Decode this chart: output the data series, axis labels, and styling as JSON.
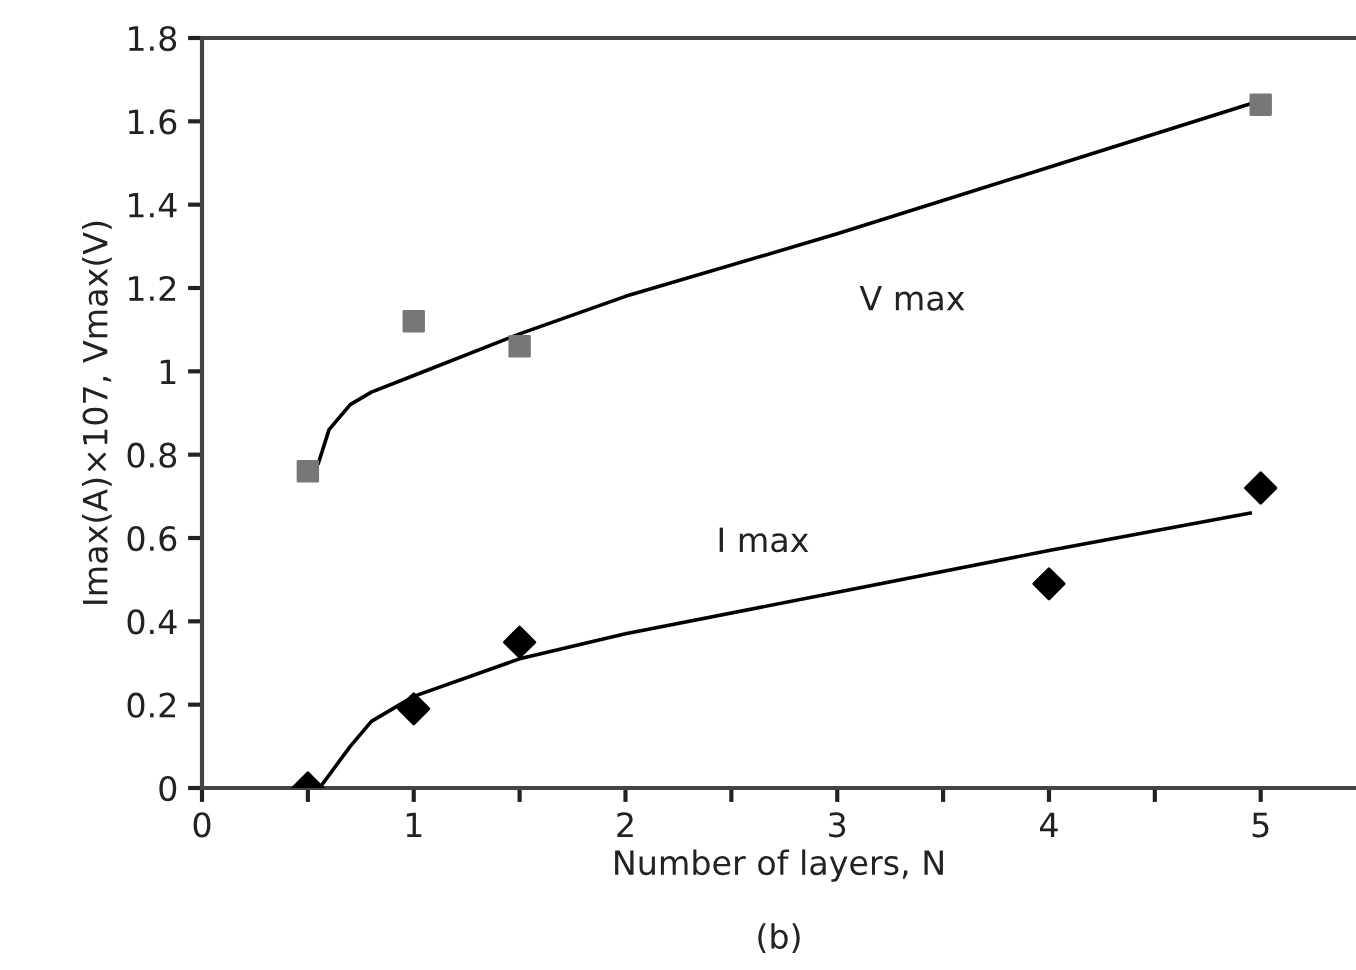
{
  "chart_data": {
    "type": "scatter",
    "xlabel": "Number of layers, N",
    "ylabel": "Imax(A)×107, Vmax(V)",
    "xlim": [
      0,
      5.45
    ],
    "ylim": [
      0,
      1.8
    ],
    "xticks": [
      0,
      {
        "value": 0.5,
        "label": null
      },
      1,
      {
        "value": 1.5,
        "label": null
      },
      2,
      {
        "value": 2.5,
        "label": null
      },
      3,
      {
        "value": 3.5,
        "label": null
      },
      4,
      {
        "value": 4.5,
        "label": null
      },
      5
    ],
    "yticks": [
      {
        "value": 0,
        "label": "0"
      },
      0.2,
      0.4,
      0.6,
      0.8,
      {
        "value": 1,
        "label": "1"
      },
      1.2,
      1.4,
      1.6,
      1.8
    ],
    "grid": false,
    "legend": false,
    "series": [
      {
        "marker": "square",
        "color": "#777777",
        "x": [
          0.5,
          1,
          1.5,
          5
        ],
        "values": [
          0.76,
          1.12,
          1.06,
          1.64
        ]
      },
      {
        "marker": "diamond",
        "color": "#000000",
        "x": [
          0.5,
          1,
          1.5,
          4,
          5
        ],
        "values": [
          0.0,
          0.19,
          0.35,
          0.49,
          0.72
        ]
      },
      {
        "type": "line",
        "name": "V max",
        "marker": "none",
        "color": "#000000",
        "x": [
          0.55,
          0.6,
          0.7,
          0.8,
          1,
          1.5,
          2,
          3,
          4,
          5
        ],
        "values": [
          0.78,
          0.86,
          0.92,
          0.95,
          0.99,
          1.09,
          1.18,
          1.33,
          1.49,
          1.65
        ]
      },
      {
        "type": "line",
        "name": "I max",
        "marker": "none",
        "color": "#000000",
        "x": [
          0.57,
          0.7,
          0.8,
          1,
          1.5,
          2,
          3,
          4,
          4.95
        ],
        "values": [
          0.01,
          0.1,
          0.16,
          0.22,
          0.31,
          0.37,
          0.47,
          0.57,
          0.66
        ]
      }
    ],
    "annotations": [
      "(b)"
    ]
  }
}
